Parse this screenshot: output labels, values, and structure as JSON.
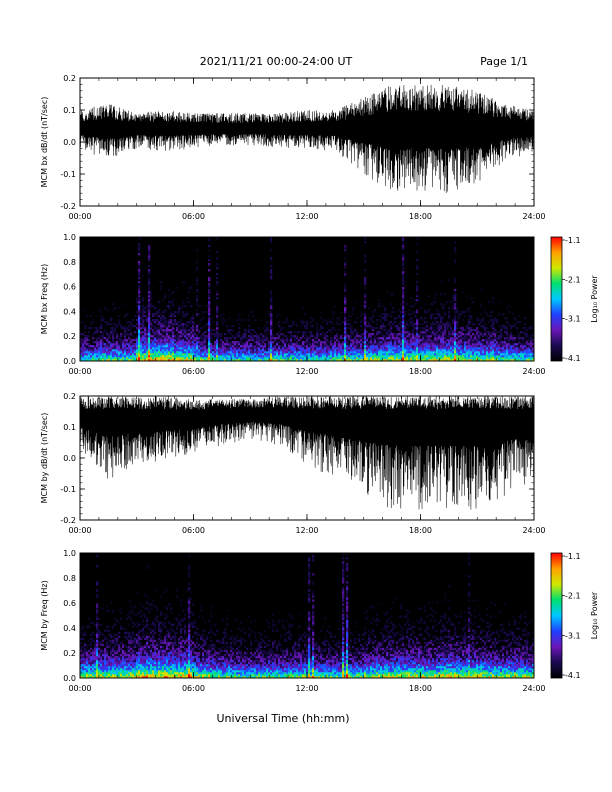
{
  "header": {
    "title": "2021/11/21  00:00-24:00 UT",
    "page": "Page 1/1"
  },
  "xlabel": "Universal Time (hh:mm)",
  "colorbar": {
    "label": "Log₁₀ Power",
    "ticks": [
      "-1.1",
      "-2.1",
      "-3.1",
      "-4.1"
    ],
    "range": [
      -4.1,
      -1.1
    ],
    "colormap": [
      "#000000",
      "#1a0a50",
      "#6a16b8",
      "#2040ff",
      "#00c8ff",
      "#00e070",
      "#d0e800",
      "#ffa000",
      "#ff0000"
    ]
  },
  "chart_data": [
    {
      "type": "line",
      "title": "",
      "ylabel": "MCM bx dB/dt (nT/sec)",
      "xlabel": "",
      "xlim": [
        "00:00",
        "24:00"
      ],
      "ylim": [
        -0.2,
        0.2
      ],
      "xticks": [
        "00:00",
        "06:00",
        "12:00",
        "18:00",
        "24:00"
      ],
      "yticks": [
        "0.2",
        "0.1",
        "0.0",
        "-0.1",
        "-0.2"
      ],
      "series": [
        {
          "x_hours": [
            0,
            1.5,
            3,
            4.5,
            6,
            7.5,
            9,
            10.5,
            12,
            13.5,
            15,
            16.5,
            18,
            19.5,
            21,
            22.5,
            24
          ],
          "baseline": [
            0.04,
            0.04,
            0.04,
            0.04,
            0.04,
            0.04,
            0.04,
            0.04,
            0.04,
            0.04,
            0.04,
            0.04,
            0.04,
            0.04,
            0.04,
            0.04,
            0.04
          ],
          "envelope_up": [
            0.06,
            0.08,
            0.05,
            0.06,
            0.05,
            0.05,
            0.05,
            0.05,
            0.06,
            0.06,
            0.1,
            0.14,
            0.14,
            0.14,
            0.12,
            0.08,
            0.06
          ],
          "envelope_down": [
            0.06,
            0.1,
            0.06,
            0.07,
            0.06,
            0.05,
            0.05,
            0.06,
            0.06,
            0.07,
            0.14,
            0.2,
            0.2,
            0.2,
            0.18,
            0.1,
            0.07
          ]
        }
      ]
    },
    {
      "type": "heatmap",
      "title": "",
      "ylabel": "MCM bx Freq (Hz)",
      "xlabel": "",
      "xlim": [
        "00:00",
        "24:00"
      ],
      "ylim": [
        0.0,
        1.0
      ],
      "xticks": [
        "00:00",
        "06:00",
        "12:00",
        "18:00",
        "24:00"
      ],
      "yticks": [
        "1.0",
        "0.8",
        "0.6",
        "0.4",
        "0.2",
        "0.0"
      ],
      "log_power_range": [
        -4.1,
        -1.1
      ],
      "activity_by_hour": [
        0.3,
        0.45,
        0.4,
        0.7,
        0.75,
        0.65,
        0.4,
        0.3,
        0.3,
        0.3,
        0.35,
        0.35,
        0.35,
        0.35,
        0.4,
        0.5,
        0.55,
        0.55,
        0.55,
        0.6,
        0.55,
        0.5,
        0.4,
        0.35
      ]
    },
    {
      "type": "line",
      "title": "",
      "ylabel": "MCM by dB/dt (nT/sec)",
      "xlabel": "",
      "xlim": [
        "00:00",
        "24:00"
      ],
      "ylim": [
        -0.2,
        0.2
      ],
      "xticks": [
        "00:00",
        "06:00",
        "12:00",
        "18:00",
        "24:00"
      ],
      "yticks": [
        "0.2",
        "0.1",
        "0.0",
        "-0.1",
        "-0.2"
      ],
      "series": [
        {
          "x_hours": [
            0,
            1.5,
            3,
            4.5,
            6,
            7.5,
            9,
            10.5,
            12,
            13.5,
            15,
            16.5,
            18,
            19.5,
            21,
            22.5,
            24
          ],
          "baseline": [
            0.13,
            0.13,
            0.13,
            0.13,
            0.13,
            0.14,
            0.14,
            0.14,
            0.13,
            0.13,
            0.13,
            0.13,
            0.13,
            0.13,
            0.13,
            0.13,
            0.13
          ],
          "envelope_up": [
            0.07,
            0.07,
            0.07,
            0.07,
            0.06,
            0.05,
            0.05,
            0.06,
            0.07,
            0.07,
            0.07,
            0.07,
            0.07,
            0.07,
            0.07,
            0.07,
            0.07
          ],
          "envelope_down": [
            0.1,
            0.2,
            0.16,
            0.14,
            0.12,
            0.1,
            0.08,
            0.1,
            0.15,
            0.2,
            0.25,
            0.3,
            0.3,
            0.3,
            0.3,
            0.25,
            0.2
          ]
        }
      ]
    },
    {
      "type": "heatmap",
      "title": "",
      "ylabel": "MCM by Freq (Hz)",
      "xlabel": "Universal Time (hh:mm)",
      "xlim": [
        "00:00",
        "24:00"
      ],
      "ylim": [
        0.0,
        1.0
      ],
      "xticks": [
        "00:00",
        "06:00",
        "12:00",
        "18:00",
        "24:00"
      ],
      "yticks": [
        "1.0",
        "0.8",
        "0.6",
        "0.4",
        "0.2",
        "0.0"
      ],
      "log_power_range": [
        -4.1,
        -1.1
      ],
      "activity_by_hour": [
        0.55,
        0.6,
        0.6,
        0.75,
        0.75,
        0.75,
        0.55,
        0.45,
        0.4,
        0.4,
        0.4,
        0.45,
        0.45,
        0.4,
        0.45,
        0.55,
        0.6,
        0.6,
        0.6,
        0.65,
        0.6,
        0.6,
        0.55,
        0.55
      ]
    }
  ]
}
